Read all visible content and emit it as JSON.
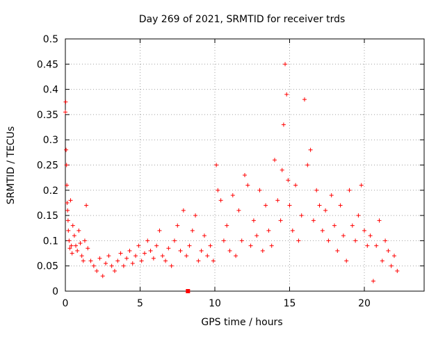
{
  "chart_data": {
    "type": "scatter",
    "title": "Day 269 of 2021, SRMTID for receiver trds",
    "xlabel": "GPS time / hours",
    "ylabel": "SRMTID / TECUs",
    "xlim": [
      0,
      24
    ],
    "ylim": [
      0,
      0.5
    ],
    "x_ticks": [
      0,
      5,
      10,
      15,
      20
    ],
    "x_tick_labels": [
      "0",
      "5",
      "10",
      "15",
      "20"
    ],
    "y_ticks": [
      0,
      0.05,
      0.1,
      0.15,
      0.2,
      0.25,
      0.3,
      0.35,
      0.4,
      0.45,
      0.5
    ],
    "y_tick_labels": [
      "0",
      "0.05",
      "0.1",
      "0.15",
      "0.2",
      "0.25",
      "0.3",
      "0.35",
      "0.4",
      "0.45",
      "0.5"
    ],
    "grid": true,
    "marker": "plus",
    "color": "#ff0000",
    "series": [
      {
        "name": "SRMTID",
        "x": [
          0.0,
          0.02,
          0.05,
          0.08,
          0.1,
          0.12,
          0.15,
          0.18,
          0.2,
          0.25,
          0.3,
          0.35,
          0.4,
          0.45,
          0.5,
          0.6,
          0.7,
          0.8,
          0.9,
          1.0,
          1.1,
          1.2,
          1.3,
          1.4,
          1.5,
          1.7,
          1.9,
          2.1,
          2.3,
          2.5,
          2.7,
          2.9,
          3.1,
          3.3,
          3.5,
          3.7,
          3.9,
          4.1,
          4.3,
          4.5,
          4.7,
          4.9,
          5.1,
          5.3,
          5.5,
          5.7,
          5.9,
          6.1,
          6.3,
          6.5,
          6.7,
          6.9,
          7.1,
          7.3,
          7.5,
          7.7,
          7.9,
          8.1,
          8.3,
          8.5,
          8.7,
          8.9,
          9.1,
          9.3,
          9.5,
          9.7,
          9.9,
          10.1,
          10.2,
          10.4,
          10.6,
          10.8,
          11.0,
          11.2,
          11.4,
          11.6,
          11.8,
          12.0,
          12.2,
          12.4,
          12.6,
          12.8,
          13.0,
          13.2,
          13.4,
          13.6,
          13.8,
          14.0,
          14.2,
          14.4,
          14.5,
          14.6,
          14.7,
          14.8,
          14.9,
          15.0,
          15.2,
          15.4,
          15.6,
          15.8,
          16.0,
          16.2,
          16.4,
          16.6,
          16.8,
          17.0,
          17.2,
          17.4,
          17.6,
          17.8,
          18.0,
          18.2,
          18.4,
          18.6,
          18.8,
          19.0,
          19.2,
          19.4,
          19.6,
          19.8,
          20.0,
          20.2,
          20.4,
          20.6,
          20.8,
          21.0,
          21.2,
          21.4,
          21.6,
          21.8,
          22.0,
          22.2
        ],
        "y": [
          0.355,
          0.375,
          0.28,
          0.25,
          0.21,
          0.175,
          0.16,
          0.14,
          0.12,
          0.1,
          0.085,
          0.18,
          0.09,
          0.075,
          0.13,
          0.11,
          0.09,
          0.08,
          0.12,
          0.095,
          0.07,
          0.06,
          0.1,
          0.17,
          0.085,
          0.06,
          0.05,
          0.04,
          0.065,
          0.03,
          0.055,
          0.07,
          0.05,
          0.04,
          0.06,
          0.075,
          0.05,
          0.065,
          0.08,
          0.055,
          0.07,
          0.09,
          0.06,
          0.075,
          0.1,
          0.08,
          0.065,
          0.09,
          0.12,
          0.07,
          0.06,
          0.085,
          0.05,
          0.1,
          0.13,
          0.08,
          0.16,
          0.07,
          0.09,
          0.12,
          0.15,
          0.06,
          0.08,
          0.11,
          0.07,
          0.09,
          0.06,
          0.25,
          0.2,
          0.18,
          0.1,
          0.13,
          0.08,
          0.19,
          0.07,
          0.16,
          0.1,
          0.23,
          0.21,
          0.09,
          0.14,
          0.11,
          0.2,
          0.08,
          0.17,
          0.12,
          0.09,
          0.26,
          0.18,
          0.14,
          0.24,
          0.33,
          0.45,
          0.39,
          0.22,
          0.17,
          0.12,
          0.21,
          0.1,
          0.15,
          0.38,
          0.25,
          0.28,
          0.14,
          0.2,
          0.17,
          0.12,
          0.16,
          0.1,
          0.19,
          0.13,
          0.08,
          0.17,
          0.11,
          0.06,
          0.2,
          0.13,
          0.1,
          0.15,
          0.21,
          0.12,
          0.09,
          0.11,
          0.02,
          0.09,
          0.14,
          0.06,
          0.1,
          0.08,
          0.05,
          0.07,
          0.04
        ]
      }
    ],
    "notes": "Dense red '+' markers; values estimated from gridlines. Lower envelope ~0.02-0.05, peaks near 0.45 at ~14.7 h."
  },
  "plot_outlier": {
    "label": "Square marker at x≈8.2, y≈0"
  }
}
